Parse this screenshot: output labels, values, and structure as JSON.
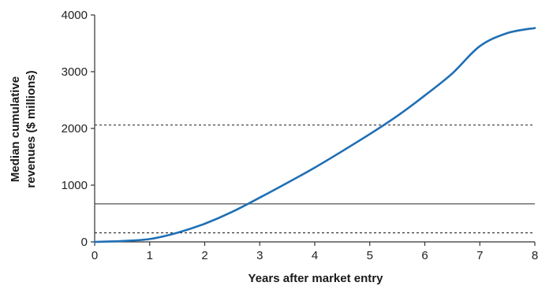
{
  "chart_data": {
    "type": "line",
    "title": "",
    "xlabel": "Years after market entry",
    "ylabel_line1": "Median cumulative",
    "ylabel_line2": "revenues ($ millions)",
    "xlim": [
      0,
      8
    ],
    "ylim": [
      0,
      4000
    ],
    "x_ticks": [
      0,
      1,
      2,
      3,
      4,
      5,
      6,
      7,
      8
    ],
    "x_tick_labels": [
      "0",
      "1",
      "2",
      "3",
      "4",
      "5",
      "6",
      "7",
      "8"
    ],
    "y_ticks": [
      0,
      1000,
      2000,
      3000,
      4000
    ],
    "y_tick_labels": [
      "0",
      "1000",
      "2000",
      "3000",
      "4000"
    ],
    "grid": false,
    "line_color": "#1f6fb5",
    "series": [
      {
        "x": [
          0,
          0.5,
          1,
          1.5,
          2,
          2.5,
          3,
          3.5,
          4,
          4.5,
          5,
          5.5,
          6,
          6.5,
          7,
          7.5,
          8
        ],
        "y": [
          0,
          15,
          50,
          160,
          320,
          530,
          780,
          1040,
          1310,
          1600,
          1900,
          2220,
          2580,
          2970,
          3450,
          3680,
          3770
        ]
      }
    ],
    "reference_lines": [
      {
        "y": 2060,
        "style": "dashed",
        "color": "#333333"
      },
      {
        "y": 670,
        "style": "solid",
        "color": "#555555"
      },
      {
        "y": 160,
        "style": "dashed",
        "color": "#333333"
      }
    ]
  }
}
